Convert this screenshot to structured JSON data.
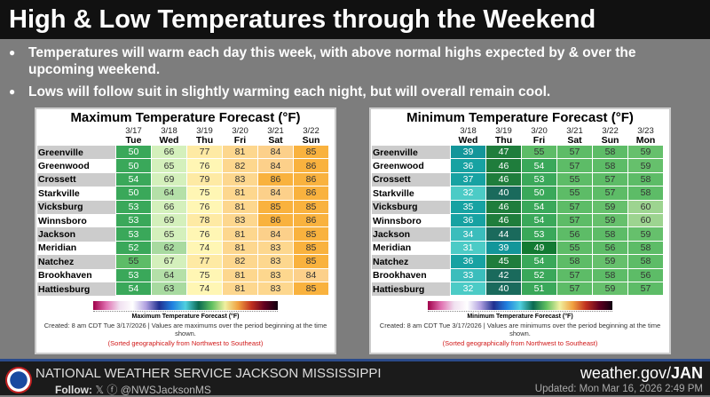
{
  "title": "High & Low Temperatures through the Weekend",
  "bullets": [
    "Temperatures will warm each day this week, with above normal highs expected by & over the upcoming weekend.",
    "Lows will follow suit in slightly warming each night, but will overall remain cool."
  ],
  "max": {
    "title": "Maximum Temperature Forecast (°F)",
    "dates": [
      "3/17",
      "3/18",
      "3/19",
      "3/20",
      "3/21",
      "3/22"
    ],
    "days": [
      "Tue",
      "Wed",
      "Thu",
      "Fri",
      "Sat",
      "Sun"
    ],
    "rows": [
      [
        "Greenville",
        50,
        66,
        77,
        81,
        84,
        85
      ],
      [
        "Greenwood",
        50,
        65,
        76,
        82,
        84,
        86
      ],
      [
        "Crossett",
        54,
        69,
        79,
        83,
        86,
        86
      ],
      [
        "Starkville",
        50,
        64,
        75,
        81,
        84,
        86
      ],
      [
        "Vicksburg",
        53,
        66,
        76,
        81,
        85,
        85
      ],
      [
        "Winnsboro",
        53,
        69,
        78,
        83,
        86,
        86
      ],
      [
        "Jackson",
        53,
        65,
        76,
        81,
        84,
        85
      ],
      [
        "Meridian",
        52,
        62,
        74,
        81,
        83,
        85
      ],
      [
        "Natchez",
        55,
        67,
        77,
        82,
        83,
        85
      ],
      [
        "Brookhaven",
        53,
        64,
        75,
        81,
        83,
        84
      ],
      [
        "Hattiesburg",
        54,
        63,
        74,
        81,
        83,
        85
      ]
    ],
    "legend": "Maximum Temperature Forecast (°F)",
    "note": "Created: 8 am CDT Tue 3/17/2026  |  Values are maximums over the period beginning at the time shown.",
    "sort": "(Sorted geographically from Northwest to Southeast)"
  },
  "min": {
    "title": "Minimum Temperature Forecast (°F)",
    "dates": [
      "3/18",
      "3/19",
      "3/20",
      "3/21",
      "3/22",
      "3/23"
    ],
    "days": [
      "Wed",
      "Thu",
      "Fri",
      "Sat",
      "Sun",
      "Mon"
    ],
    "rows": [
      [
        "Greenville",
        39,
        47,
        55,
        57,
        58,
        59
      ],
      [
        "Greenwood",
        36,
        46,
        54,
        57,
        58,
        59
      ],
      [
        "Crossett",
        37,
        46,
        53,
        55,
        57,
        58
      ],
      [
        "Starkville",
        32,
        40,
        50,
        55,
        57,
        58
      ],
      [
        "Vicksburg",
        35,
        46,
        54,
        57,
        59,
        60
      ],
      [
        "Winnsboro",
        36,
        46,
        54,
        57,
        59,
        60
      ],
      [
        "Jackson",
        34,
        44,
        53,
        56,
        58,
        59
      ],
      [
        "Meridian",
        31,
        39,
        49,
        55,
        56,
        58
      ],
      [
        "Natchez",
        36,
        45,
        54,
        58,
        59,
        58
      ],
      [
        "Brookhaven",
        33,
        42,
        52,
        57,
        58,
        56
      ],
      [
        "Hattiesburg",
        32,
        40,
        51,
        57,
        59,
        57
      ]
    ],
    "legend": "Minimum Temperature Forecast (°F)",
    "note": "Created: 8 am CDT Tue 3/17/2026  |  Values are minimums over the period beginning at the time shown.",
    "sort": "(Sorted geographically from Northwest to Southeast)"
  },
  "footer": {
    "org": "NATIONAL WEATHER SERVICE JACKSON MISSISSIPPI",
    "follow": "Follow:",
    "handle": "@NWSJacksonMS",
    "site_prefix": "weather.gov/",
    "site_office": "JAN",
    "updated": "Updated: Mon Mar 16, 2026 2:49 PM"
  }
}
